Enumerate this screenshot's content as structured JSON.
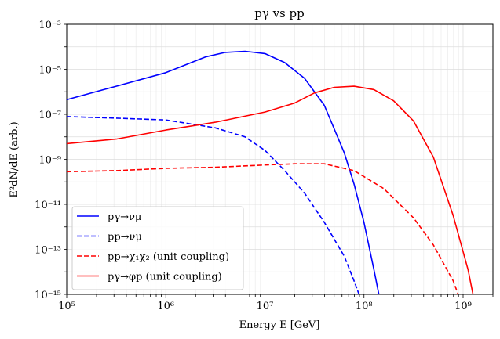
{
  "chart_data": {
    "type": "line",
    "title": "pγ vs pp",
    "xlabel": "Energy E [GeV]",
    "ylabel": "E²dN/dE  (arb.)",
    "x_scale": "log",
    "y_scale": "log",
    "xlim": [
      100000,
      2000000000
    ],
    "ylim": [
      1e-15,
      0.001
    ],
    "grid": true,
    "legend_position": "lower-left",
    "x_ticks": [
      {
        "value": 100000,
        "label": "10⁵"
      },
      {
        "value": 1000000,
        "label": "10⁶"
      },
      {
        "value": 10000000,
        "label": "10⁷"
      },
      {
        "value": 100000000,
        "label": "10⁸"
      },
      {
        "value": 1000000000,
        "label": "10⁹"
      }
    ],
    "y_ticks": [
      {
        "value": 1e-15,
        "label": "10⁻¹⁵"
      },
      {
        "value": 1e-13,
        "label": "10⁻¹³"
      },
      {
        "value": 1e-11,
        "label": "10⁻¹¹"
      },
      {
        "value": 1e-09,
        "label": "10⁻⁹"
      },
      {
        "value": 1e-07,
        "label": "10⁻⁷"
      },
      {
        "value": 1e-05,
        "label": "10⁻⁵"
      },
      {
        "value": 0.001,
        "label": "10⁻³"
      }
    ],
    "series": [
      {
        "name": "pγ→νμ",
        "color": "#0000ff",
        "dash": "solid",
        "log10_x": [
          5.0,
          5.5,
          6.0,
          6.2,
          6.4,
          6.6,
          6.8,
          7.0,
          7.2,
          7.4,
          7.6,
          7.8,
          7.9,
          8.0,
          8.1,
          8.15
        ],
        "log10_y": [
          -6.35,
          -5.75,
          -5.15,
          -4.8,
          -4.45,
          -4.25,
          -4.2,
          -4.3,
          -4.7,
          -5.4,
          -6.6,
          -8.7,
          -10.1,
          -11.8,
          -13.9,
          -15.0
        ]
      },
      {
        "name": "pp→νμ",
        "color": "#0000ff",
        "dash": "dashed",
        "log10_x": [
          5.0,
          5.5,
          6.0,
          6.5,
          6.8,
          7.0,
          7.2,
          7.4,
          7.6,
          7.8,
          7.9,
          7.95
        ],
        "log10_y": [
          -7.1,
          -7.17,
          -7.25,
          -7.6,
          -8.0,
          -8.6,
          -9.5,
          -10.5,
          -11.8,
          -13.3,
          -14.4,
          -15.0
        ]
      },
      {
        "name": "pp→χ₁χ₂ (unit coupling)",
        "color": "#ff0000",
        "dash": "dashed",
        "log10_x": [
          5.0,
          5.5,
          6.0,
          6.5,
          7.0,
          7.3,
          7.6,
          7.9,
          8.2,
          8.5,
          8.7,
          8.9,
          8.95
        ],
        "log10_y": [
          -9.55,
          -9.5,
          -9.4,
          -9.35,
          -9.25,
          -9.2,
          -9.2,
          -9.5,
          -10.3,
          -11.6,
          -12.8,
          -14.4,
          -15.0
        ]
      },
      {
        "name": "pγ→φp (unit coupling)",
        "color": "#ff0000",
        "dash": "solid",
        "log10_x": [
          5.0,
          5.5,
          6.0,
          6.5,
          7.0,
          7.3,
          7.5,
          7.7,
          7.9,
          8.1,
          8.3,
          8.5,
          8.7,
          8.9,
          9.05,
          9.1
        ],
        "log10_y": [
          -8.3,
          -8.1,
          -7.7,
          -7.35,
          -6.9,
          -6.5,
          -6.05,
          -5.8,
          -5.75,
          -5.9,
          -6.4,
          -7.3,
          -8.9,
          -11.5,
          -13.9,
          -15.0
        ]
      }
    ]
  }
}
